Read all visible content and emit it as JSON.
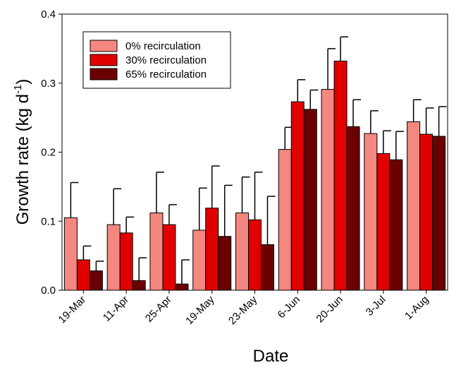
{
  "chart_data": {
    "type": "bar",
    "y_label": [
      "Growth rate (kg d",
      "-1",
      ")"
    ],
    "x_label": "Date",
    "categories": [
      "19-Mar",
      "11-Apr",
      "25-Apr",
      "19-May",
      "23-May",
      "6-Jun",
      "20-Jun",
      "3-Jul",
      "1-Aug"
    ],
    "series": [
      {
        "name": "0% recirculation",
        "color": "#f4877f",
        "values": [
          0.105,
          0.095,
          0.112,
          0.087,
          0.112,
          0.204,
          0.291,
          0.227,
          0.244
        ],
        "errors": [
          0.051,
          0.052,
          0.059,
          0.061,
          0.052,
          0.032,
          0.059,
          0.033,
          0.032
        ]
      },
      {
        "name": "30% recirculation",
        "color": "#e00000",
        "values": [
          0.044,
          0.083,
          0.095,
          0.119,
          0.102,
          0.273,
          0.332,
          0.198,
          0.226
        ],
        "errors": [
          0.02,
          0.023,
          0.029,
          0.061,
          0.069,
          0.032,
          0.035,
          0.033,
          0.038
        ]
      },
      {
        "name": "65% recirculation",
        "color": "#6b0000",
        "values": [
          0.028,
          0.014,
          0.009,
          0.078,
          0.066,
          0.262,
          0.237,
          0.189,
          0.223
        ],
        "errors": [
          0.014,
          0.033,
          0.035,
          0.074,
          0.07,
          0.028,
          0.039,
          0.041,
          0.043
        ]
      }
    ],
    "ylim": [
      0,
      0.4
    ],
    "yticks": [
      {
        "value": 0,
        "label": "0.0"
      },
      0.1,
      0.2,
      0.3,
      0.4
    ],
    "legend": "upper left"
  }
}
